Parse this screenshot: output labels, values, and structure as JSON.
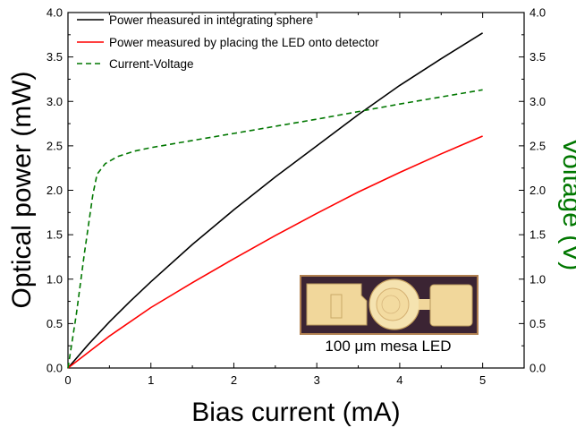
{
  "chart_data": {
    "type": "line",
    "xlabel": "Bias current (mA)",
    "ylabel": "Optical power (mW)",
    "y2label": "Voltage (V)",
    "xlim": [
      0,
      5.5
    ],
    "ylim": [
      0,
      4.0
    ],
    "y2lim": [
      0,
      4.0
    ],
    "xticks": [
      "0",
      "1",
      "2",
      "3",
      "4",
      "5"
    ],
    "yticks": [
      "0.0",
      "0.5",
      "1.0",
      "1.5",
      "2.0",
      "2.5",
      "3.0",
      "3.5",
      "4.0"
    ],
    "y2ticks": [
      "0.0",
      "0.5",
      "1.0",
      "1.5",
      "2.0",
      "2.5",
      "3.0",
      "3.5",
      "4.0"
    ],
    "grid": false,
    "legend_position": "top-left",
    "series": [
      {
        "name": "Power measured in integrating sphere",
        "color": "#000000",
        "dash": "solid",
        "axis": "left",
        "x": [
          0,
          0.25,
          0.5,
          0.75,
          1.0,
          1.5,
          2.0,
          2.5,
          3.0,
          3.5,
          4.0,
          4.5,
          5.0
        ],
        "y": [
          0,
          0.27,
          0.52,
          0.75,
          0.97,
          1.39,
          1.78,
          2.15,
          2.5,
          2.85,
          3.18,
          3.48,
          3.77
        ]
      },
      {
        "name": "Power measured by placing the LED onto detector",
        "color": "#ff0000",
        "dash": "solid",
        "axis": "left",
        "x": [
          0,
          0.5,
          1.0,
          1.5,
          2.0,
          2.5,
          3.0,
          3.5,
          4.0,
          4.5,
          5.0
        ],
        "y": [
          0,
          0.36,
          0.68,
          0.96,
          1.23,
          1.49,
          1.74,
          1.98,
          2.2,
          2.41,
          2.61
        ]
      },
      {
        "name": "Current-Voltage",
        "color": "#007700",
        "dash": "dashed",
        "axis": "right",
        "x": [
          0,
          0.1,
          0.2,
          0.3,
          0.35,
          0.45,
          0.6,
          0.8,
          1.0,
          1.5,
          2.0,
          3.0,
          4.0,
          5.0
        ],
        "y": [
          0,
          0.6,
          1.3,
          1.95,
          2.18,
          2.3,
          2.38,
          2.44,
          2.48,
          2.56,
          2.64,
          2.8,
          2.97,
          3.13
        ]
      }
    ],
    "inset": {
      "caption": "100 μm mesa LED"
    }
  }
}
